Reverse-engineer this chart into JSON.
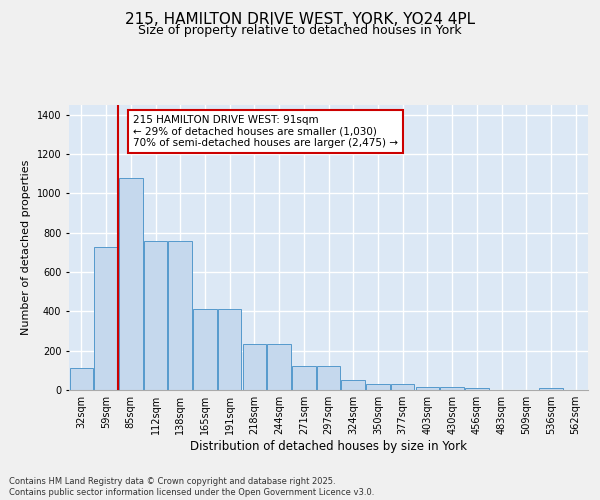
{
  "title": "215, HAMILTON DRIVE WEST, YORK, YO24 4PL",
  "subtitle": "Size of property relative to detached houses in York",
  "xlabel": "Distribution of detached houses by size in York",
  "ylabel": "Number of detached properties",
  "categories": [
    "32sqm",
    "59sqm",
    "85sqm",
    "112sqm",
    "138sqm",
    "165sqm",
    "191sqm",
    "218sqm",
    "244sqm",
    "271sqm",
    "297sqm",
    "324sqm",
    "350sqm",
    "377sqm",
    "403sqm",
    "430sqm",
    "456sqm",
    "483sqm",
    "509sqm",
    "536sqm",
    "562sqm"
  ],
  "values": [
    110,
    730,
    1080,
    760,
    760,
    410,
    410,
    235,
    235,
    120,
    120,
    50,
    30,
    30,
    15,
    15,
    10,
    0,
    0,
    8,
    0
  ],
  "bar_color": "#c5d8ed",
  "bar_edge_color": "#5599cc",
  "background_color": "#dce8f5",
  "grid_color": "#ffffff",
  "vline_color": "#cc0000",
  "vline_position": 1.5,
  "annotation_text": "215 HAMILTON DRIVE WEST: 91sqm\n← 29% of detached houses are smaller (1,030)\n70% of semi-detached houses are larger (2,475) →",
  "annotation_box_facecolor": "white",
  "annotation_box_edgecolor": "#cc0000",
  "footer_text": "Contains HM Land Registry data © Crown copyright and database right 2025.\nContains public sector information licensed under the Open Government Licence v3.0.",
  "ylim": [
    0,
    1450
  ],
  "title_fontsize": 11,
  "subtitle_fontsize": 9,
  "xlabel_fontsize": 8.5,
  "ylabel_fontsize": 8,
  "tick_fontsize": 7,
  "footer_fontsize": 6,
  "annotation_fontsize": 7.5,
  "fig_facecolor": "#f0f0f0"
}
